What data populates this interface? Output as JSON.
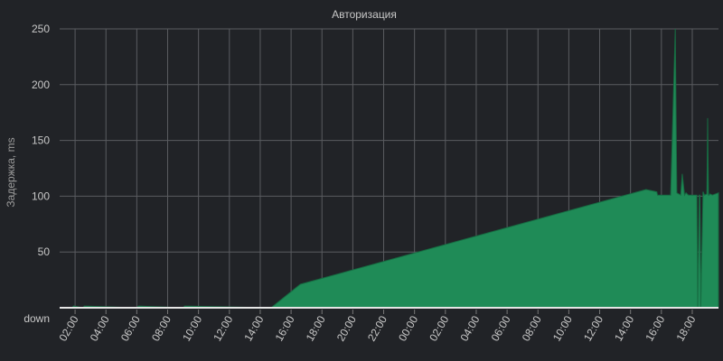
{
  "chart_data": {
    "type": "area",
    "title": "Авторизация",
    "ylabel": "Задержка, ms",
    "xlabel": "",
    "ylim": [
      0,
      250
    ],
    "y_ticks": [
      {
        "value": 250,
        "label": "250"
      },
      {
        "value": 200,
        "label": "200"
      },
      {
        "value": 150,
        "label": "150"
      },
      {
        "value": 100,
        "label": "100"
      },
      {
        "value": 50,
        "label": "50"
      },
      {
        "value": 0,
        "label": "down"
      }
    ],
    "x_range_hours": [
      1.0,
      43.7
    ],
    "x_tick_labels": [
      "02:00",
      "04:00",
      "06:00",
      "08:00",
      "10:00",
      "12:00",
      "14:00",
      "16:00",
      "18:00",
      "20:00",
      "22:00",
      "00:00",
      "02:00",
      "04:00",
      "06:00",
      "08:00",
      "10:00",
      "12:00",
      "14:00",
      "16:00",
      "18:00"
    ],
    "grid": true,
    "colors": {
      "area": "#1f8b57",
      "outline": "#176b42",
      "baseline": "#e6e6e6"
    },
    "series": [
      {
        "x": [
          1.0,
          1.8,
          1.9,
          2.5,
          2.6,
          6.0,
          6.1,
          9.0,
          9.1,
          14.7,
          16.6,
          39.0,
          39.7,
          39.75,
          40.6,
          40.9,
          41.0,
          41.25,
          41.35,
          41.5,
          41.6,
          41.75,
          41.85,
          42.2,
          42.3,
          42.35,
          42.45,
          42.5,
          42.55,
          42.7,
          42.8,
          42.95,
          43.0,
          43.05,
          43.1,
          43.15,
          43.3,
          43.7
        ],
        "y": [
          0,
          0,
          1.5,
          0,
          1.5,
          0,
          1.5,
          0,
          1.5,
          0,
          21,
          106,
          104,
          101,
          101,
          250,
          103,
          101,
          120,
          101,
          103,
          101,
          101,
          101,
          101,
          0,
          101,
          101,
          0,
          104,
          101,
          102,
          170,
          101,
          101,
          102,
          101,
          103
        ]
      }
    ]
  }
}
